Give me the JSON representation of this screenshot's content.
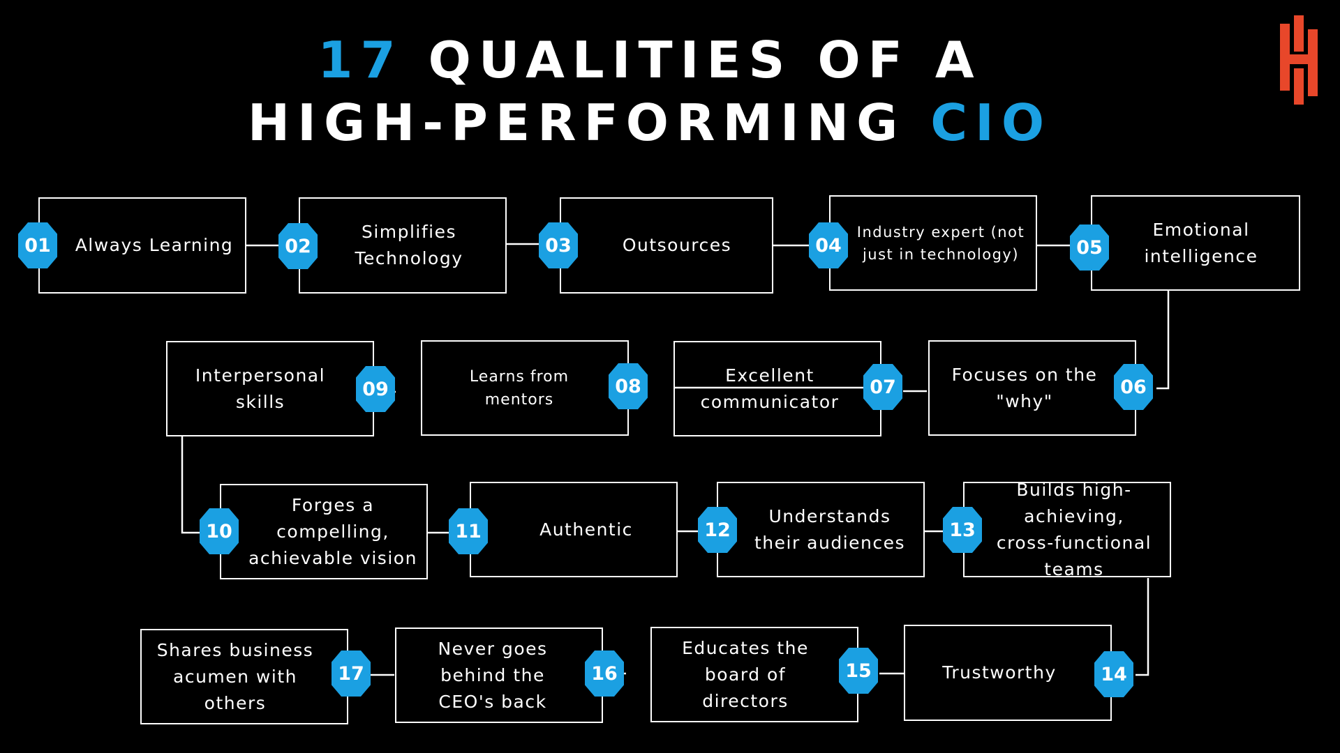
{
  "title": {
    "line1_accent": "17",
    "line1_rest": " QUALITIES OF A",
    "line2_rest": "HIGH-PERFORMING ",
    "line2_accent": "CIO"
  },
  "logo": {
    "icon": "brand-h-logo-icon",
    "color": "#e8472a"
  },
  "colors": {
    "background": "#000000",
    "accent": "#1ba0e2",
    "text": "#ffffff",
    "box_border": "#ffffff",
    "connector": "#ffffff"
  },
  "qualities": [
    {
      "number": "01",
      "label": "Always Learning"
    },
    {
      "number": "02",
      "label": "Simplifies Technology"
    },
    {
      "number": "03",
      "label": "Outsources"
    },
    {
      "number": "04",
      "label": "Industry expert (not just in technology)"
    },
    {
      "number": "05",
      "label": "Emotional intelligence"
    },
    {
      "number": "06",
      "label": "Focuses on the \"why\""
    },
    {
      "number": "07",
      "label": "Excellent communicator"
    },
    {
      "number": "08",
      "label": "Learns from mentors"
    },
    {
      "number": "09",
      "label": "Interpersonal skills"
    },
    {
      "number": "10",
      "label": "Forges a compelling, achievable vision"
    },
    {
      "number": "11",
      "label": "Authentic"
    },
    {
      "number": "12",
      "label": "Understands their audiences"
    },
    {
      "number": "13",
      "label": "Builds high-achieving, cross-functional teams"
    },
    {
      "number": "14",
      "label": "Trustworthy"
    },
    {
      "number": "15",
      "label": "Educates the board of directors"
    },
    {
      "number": "16",
      "label": "Never goes behind the CEO's back"
    },
    {
      "number": "17",
      "label": "Shares business acumen with others"
    }
  ]
}
